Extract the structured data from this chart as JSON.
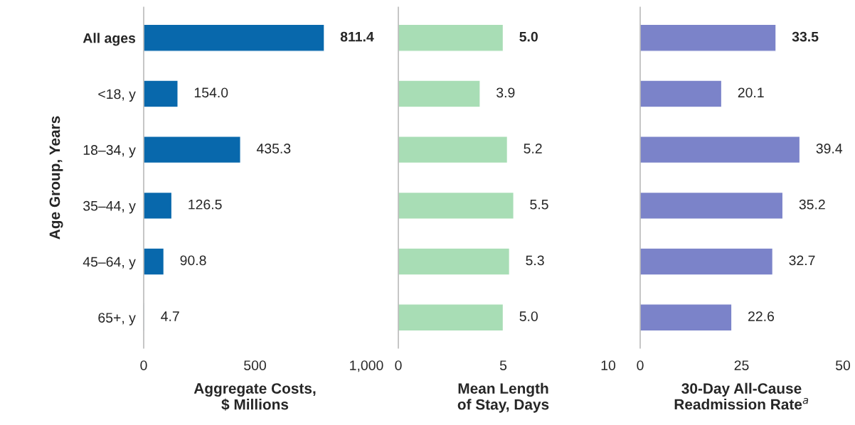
{
  "chart_data": [
    {
      "type": "bar",
      "orientation": "horizontal",
      "ylabel": "Age Group, Years",
      "xlabel": "Aggregate Costs,\n$ Millions",
      "categories": [
        "All ages",
        "<18, y",
        "18–34, y",
        "35–44, y",
        "45–64, y",
        "65+, y"
      ],
      "values": [
        811.4,
        154.0,
        435.3,
        126.5,
        90.8,
        4.7
      ],
      "value_labels": [
        "811.4",
        "154.0",
        "435.3",
        "126.5",
        "90.8",
        "4.7"
      ],
      "color": "#0868ac",
      "xlim": [
        0,
        1000
      ],
      "xticks": [
        0,
        500,
        {
          "value": 1000,
          "label": "1,000"
        }
      ],
      "grid": false,
      "legend": false
    },
    {
      "type": "bar",
      "orientation": "horizontal",
      "xlabel": "Mean Length\nof Stay, Days",
      "categories": [
        null,
        null,
        null,
        null,
        null,
        null
      ],
      "values": [
        5.0,
        3.9,
        5.2,
        5.5,
        5.3,
        5.0
      ],
      "value_labels": [
        "5.0",
        "3.9",
        "5.2",
        "5.5",
        "5.3",
        "5.0"
      ],
      "color": "#a8ddb5",
      "xlim": [
        0,
        10
      ],
      "xticks": [
        0,
        5,
        10
      ],
      "grid": false,
      "legend": false
    },
    {
      "type": "bar",
      "orientation": "horizontal",
      "xlabel": "30-Day All-Cause\nReadmission Rate$^{a}$",
      "categories": [
        null,
        null,
        null,
        null,
        null,
        null
      ],
      "values": [
        33.5,
        20.1,
        39.4,
        35.2,
        32.7,
        22.6
      ],
      "value_labels": [
        "33.5",
        "20.1",
        "39.4",
        "35.2",
        "32.7",
        "22.6"
      ],
      "color": "#7b83c9",
      "xlim": [
        0,
        50
      ],
      "xticks": [
        0,
        25,
        50
      ],
      "grid": false,
      "legend": false
    }
  ]
}
